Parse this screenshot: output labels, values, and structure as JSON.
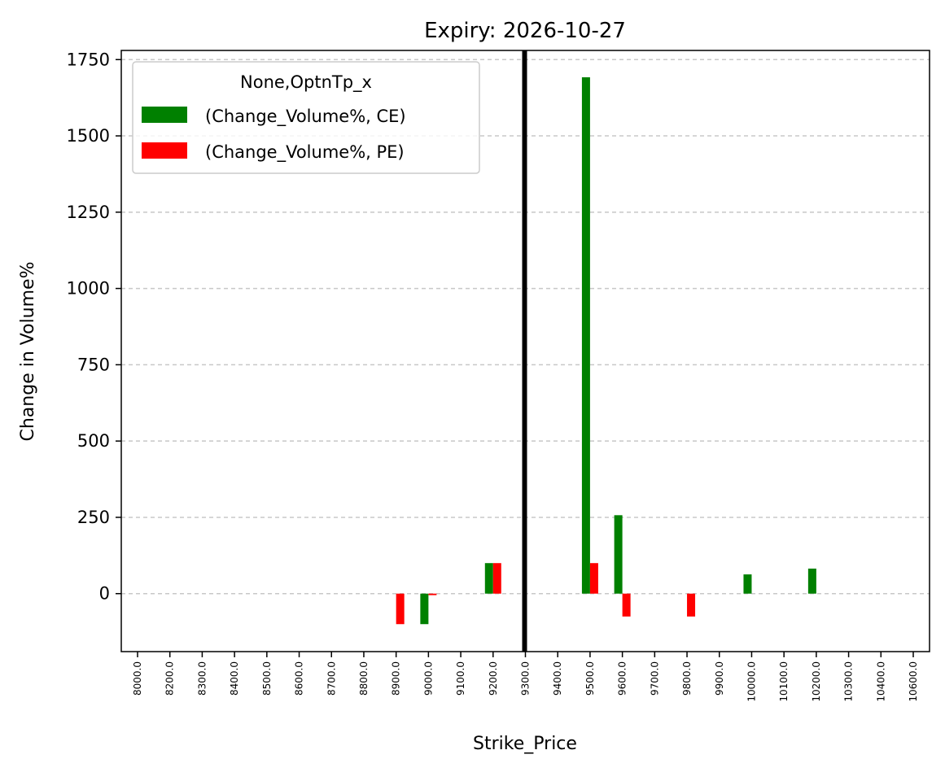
{
  "chart_data": {
    "type": "bar",
    "title": "Expiry: 2026-10-27",
    "xlabel": "Strike_Price",
    "ylabel": "Change in Volume%",
    "categories": [
      "8000.0",
      "8200.0",
      "8300.0",
      "8400.0",
      "8500.0",
      "8600.0",
      "8700.0",
      "8800.0",
      "8900.0",
      "9000.0",
      "9100.0",
      "9200.0",
      "9300.0",
      "9400.0",
      "9500.0",
      "9600.0",
      "9700.0",
      "9800.0",
      "9900.0",
      "10000.0",
      "10100.0",
      "10200.0",
      "10300.0",
      "10400.0",
      "10600.0"
    ],
    "series": [
      {
        "name": "(Change_Volume%, CE)",
        "color": "#008000",
        "values": [
          0,
          0,
          0,
          0,
          0,
          0,
          0,
          0,
          0,
          -100,
          0,
          100,
          0,
          0,
          1692,
          257,
          0,
          0,
          0,
          63,
          0,
          82,
          0,
          0,
          0
        ]
      },
      {
        "name": "(Change_Volume%, PE)",
        "color": "#ff0000",
        "values": [
          0,
          0,
          0,
          0,
          0,
          0,
          0,
          0,
          -100,
          -5,
          0,
          100,
          0,
          0,
          100,
          -75,
          0,
          -75,
          0,
          0,
          0,
          0,
          0,
          0,
          0
        ]
      }
    ],
    "ylim": [
      -190,
      1780
    ],
    "yticks": [
      0,
      250,
      500,
      750,
      1000,
      1250,
      1500,
      1750
    ],
    "grid": "y-dashed",
    "reference_line": {
      "category": "9300.0",
      "color": "#000000"
    },
    "legend": {
      "title": "None,OptnTp_x",
      "placement": "top-left"
    }
  }
}
